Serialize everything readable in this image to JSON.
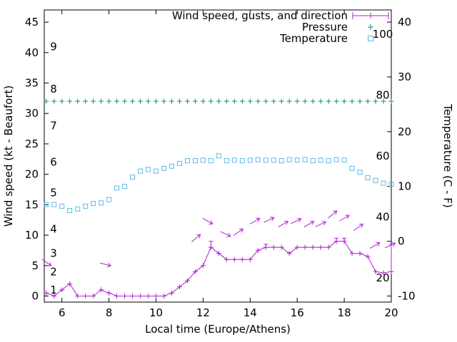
{
  "page": {
    "background": "#ffffff"
  },
  "chart_data": {
    "type": "line",
    "title": "",
    "xlabel": "Local time (Europe/Athens)",
    "ylabel_left": "Wind speed (kt - Beaufort)",
    "ylabel_right": "Temperature (C - F)",
    "xlim": [
      5.25,
      20
    ],
    "ylim_left": [
      -1,
      47
    ],
    "x_ticks": [
      6,
      8,
      10,
      12,
      14,
      16,
      18,
      20
    ],
    "y_ticks_left": [
      0,
      5,
      10,
      15,
      20,
      25,
      30,
      35,
      40,
      45
    ],
    "y_ticks_right_c": [
      -10,
      0,
      10,
      20,
      30,
      40
    ],
    "beaufort_scale_labels": [
      {
        "label": "1",
        "kt": 1
      },
      {
        "label": "2",
        "kt": 4
      },
      {
        "label": "3",
        "kt": 7
      },
      {
        "label": "4",
        "kt": 11
      },
      {
        "label": "5",
        "kt": 17
      },
      {
        "label": "6",
        "kt": 22
      },
      {
        "label": "7",
        "kt": 28
      },
      {
        "label": "8",
        "kt": 34
      },
      {
        "label": "9",
        "kt": 41
      }
    ],
    "fahrenheit_scale_labels": [
      {
        "label": "20",
        "f": 20
      },
      {
        "label": "40",
        "f": 40
      },
      {
        "label": "60",
        "f": 60
      },
      {
        "label": "80",
        "f": 80
      },
      {
        "label": "100",
        "f": 100
      }
    ],
    "legend": [
      {
        "label": "Wind speed, gusts, and direction",
        "series": "wind",
        "marker": "errorbar"
      },
      {
        "label": "Pressure",
        "series": "pressure",
        "marker": "plus"
      },
      {
        "label": "Temperature",
        "series": "temperature",
        "marker": "square"
      }
    ],
    "colors": {
      "wind": "#b31fd2",
      "pressure": "#009178",
      "temperature": "#5fb8e6",
      "axis": "#000000"
    },
    "x_hours": [
      5.333,
      5.667,
      6,
      6.333,
      6.667,
      7,
      7.333,
      7.667,
      8,
      8.333,
      8.667,
      9,
      9.333,
      9.667,
      10,
      10.333,
      10.667,
      11,
      11.333,
      11.667,
      12,
      12.333,
      12.667,
      13,
      13.333,
      13.667,
      14,
      14.333,
      14.667,
      15,
      15.333,
      15.667,
      16,
      16.333,
      16.667,
      17,
      17.333,
      17.667,
      18,
      18.333,
      18.667,
      19,
      19.333,
      19.667,
      20
    ],
    "series": {
      "wind_speed_kt": [
        0.5,
        0,
        1,
        2,
        0,
        0,
        0,
        1,
        0.5,
        0,
        0,
        0,
        0,
        0,
        0,
        0,
        0.5,
        1.5,
        2.5,
        4,
        5,
        8,
        7,
        6,
        6,
        6,
        6,
        7.5,
        8,
        8,
        8,
        7,
        8,
        8,
        8,
        8,
        8,
        9,
        9,
        7,
        7,
        6.5,
        4,
        3.8,
        4
      ],
      "wind_gust_kt": [
        0.5,
        0,
        1,
        2,
        0,
        0,
        0,
        1,
        0.5,
        0,
        0,
        0,
        0,
        0,
        0,
        0,
        0.5,
        1.5,
        2.5,
        4,
        5,
        9,
        7,
        6,
        6,
        6,
        6,
        7.5,
        8.5,
        8,
        8,
        7,
        8,
        8,
        8,
        8,
        8,
        9.5,
        9.5,
        7,
        7,
        6.5,
        4,
        3.8,
        8.5
      ],
      "temperature_c": [
        6.7,
        6.7,
        6.4,
        5.6,
        5.9,
        6.4,
        6.9,
        7.0,
        7.6,
        9.7,
        10.0,
        11.7,
        12.8,
        13.1,
        12.8,
        13.3,
        13.7,
        14.2,
        14.7,
        14.7,
        14.8,
        14.7,
        15.6,
        14.7,
        14.8,
        14.7,
        14.8,
        14.9,
        14.8,
        14.8,
        14.7,
        14.9,
        14.8,
        14.9,
        14.7,
        14.8,
        14.7,
        14.9,
        14.8,
        13.3,
        12.6,
        11.6,
        11.1,
        10.6,
        10.4
      ],
      "pressure_level_left_axis": 32
    },
    "wind_direction_arrows": [
      {
        "x": 5.35,
        "y": 5.5,
        "angle": -35
      },
      {
        "x": 7.85,
        "y": 5.2,
        "angle": -15
      },
      {
        "x": 11.7,
        "y": 9.5,
        "angle": 40
      },
      {
        "x": 12.2,
        "y": 12.3,
        "angle": -30
      },
      {
        "x": 12.95,
        "y": 10.2,
        "angle": -25
      },
      {
        "x": 13.5,
        "y": 10.5,
        "angle": 35
      },
      {
        "x": 14.2,
        "y": 12.3,
        "angle": 30
      },
      {
        "x": 14.8,
        "y": 12.5,
        "angle": 25
      },
      {
        "x": 15.4,
        "y": 11.8,
        "angle": 30
      },
      {
        "x": 15.95,
        "y": 12.3,
        "angle": 25
      },
      {
        "x": 16.5,
        "y": 11.8,
        "angle": 30
      },
      {
        "x": 17.0,
        "y": 11.8,
        "angle": 25
      },
      {
        "x": 17.5,
        "y": 13.4,
        "angle": 40
      },
      {
        "x": 18.0,
        "y": 12.8,
        "angle": 30
      },
      {
        "x": 18.6,
        "y": 11.3,
        "angle": 35
      },
      {
        "x": 19.3,
        "y": 8.3,
        "angle": 30
      },
      {
        "x": 19.95,
        "y": 8.3,
        "angle": 25
      }
    ]
  }
}
